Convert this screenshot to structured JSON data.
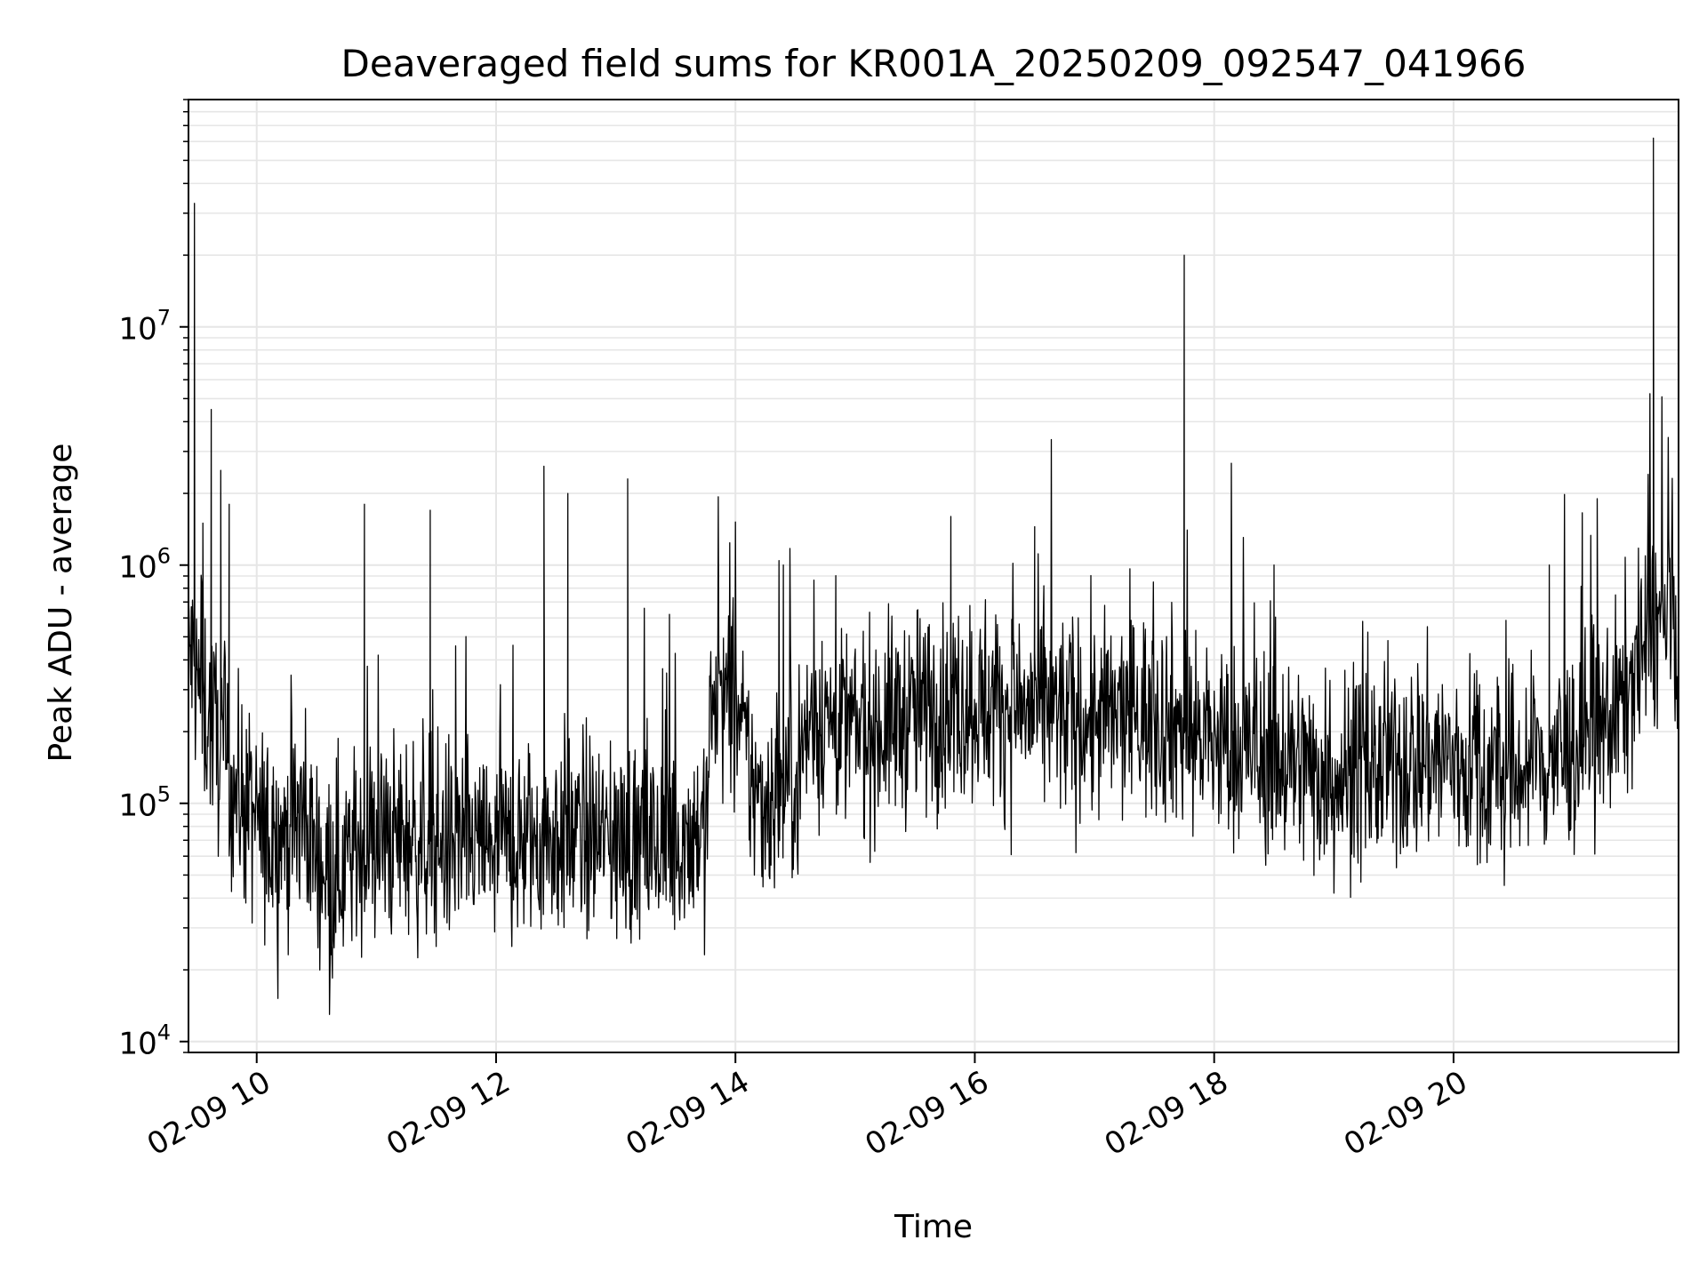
{
  "chart_data": {
    "type": "line",
    "title": "Deaveraged field sums for KR001A_20250209_092547_041966",
    "xlabel": "Time",
    "ylabel": "Peak ADU - average",
    "y_scale": "log",
    "ylim": [
      9000,
      90000000
    ],
    "xlim_hours": [
      9.43,
      21.88
    ],
    "x_ticks": [
      {
        "hour": 10,
        "label": "02-09 10"
      },
      {
        "hour": 12,
        "label": "02-09 12"
      },
      {
        "hour": 14,
        "label": "02-09 14"
      },
      {
        "hour": 16,
        "label": "02-09 16"
      },
      {
        "hour": 18,
        "label": "02-09 18"
      },
      {
        "hour": 20,
        "label": "02-09 20"
      }
    ],
    "y_ticks": [
      {
        "value": 10000,
        "base": "10",
        "exp": "4"
      },
      {
        "value": 100000,
        "base": "10",
        "exp": "5"
      },
      {
        "value": 1000000,
        "base": "10",
        "exp": "6"
      },
      {
        "value": 10000000,
        "base": "10",
        "exp": "7"
      }
    ],
    "grid": true,
    "line_color": "#000000",
    "grid_color": "#e6e6e6",
    "series": [
      {
        "values_hours": [
          9.43,
          9.47,
          9.5,
          9.55,
          9.6,
          9.65,
          9.7,
          9.75,
          9.8,
          9.9,
          10.0,
          10.1,
          10.2,
          10.3,
          10.4,
          10.5,
          10.6,
          10.7,
          10.8,
          10.9,
          11.0,
          11.2,
          11.4,
          11.6,
          11.8,
          12.0,
          12.2,
          12.4,
          12.6,
          12.8,
          13.0,
          13.2,
          13.4,
          13.6,
          13.75,
          13.8,
          13.9,
          14.0,
          14.1,
          14.2,
          14.3,
          14.4,
          14.5,
          14.6,
          14.7,
          14.8,
          15.0,
          15.2,
          15.4,
          15.6,
          15.8,
          16.0,
          16.2,
          16.4,
          16.6,
          16.8,
          17.0,
          17.2,
          17.4,
          17.6,
          17.8,
          18.0,
          18.2,
          18.4,
          18.6,
          18.8,
          19.0,
          19.2,
          19.4,
          19.6,
          19.8,
          20.0,
          20.2,
          20.4,
          20.6,
          20.8,
          21.0,
          21.2,
          21.4,
          21.5,
          21.6,
          21.7,
          21.8,
          21.88
        ],
        "values_median": [
          450000,
          380000,
          320000,
          260000,
          230000,
          200000,
          170000,
          140000,
          120000,
          100000,
          80000,
          70000,
          75000,
          80000,
          90000,
          60000,
          55000,
          55000,
          60000,
          65000,
          70000,
          72000,
          70000,
          68000,
          66000,
          65000,
          68000,
          72000,
          75000,
          72000,
          70000,
          68000,
          66000,
          75000,
          80000,
          250000,
          280000,
          250000,
          150000,
          100000,
          110000,
          120000,
          130000,
          200000,
          240000,
          220000,
          200000,
          210000,
          230000,
          250000,
          260000,
          270000,
          260000,
          250000,
          240000,
          230000,
          220000,
          230000,
          240000,
          230000,
          200000,
          180000,
          170000,
          160000,
          150000,
          140000,
          130000,
          135000,
          140000,
          150000,
          160000,
          150000,
          140000,
          130000,
          140000,
          150000,
          170000,
          200000,
          260000,
          350000,
          450000,
          550000,
          580000,
          500000
        ],
        "spike_hours": [
          9.48,
          9.55,
          9.62,
          9.7,
          9.77,
          10.9,
          11.45,
          12.4,
          12.6,
          13.1,
          14.4,
          15.8,
          16.5,
          17.75,
          18.5,
          20.8,
          21.2,
          21.67
        ],
        "spike_values": [
          33000000,
          1500000,
          4500000,
          2500000,
          1800000,
          1800000,
          1700000,
          2600000,
          2000000,
          2300000,
          1000000,
          1600000,
          1450000,
          20000000,
          1000000,
          1000000,
          1900000,
          62000000
        ]
      }
    ]
  }
}
